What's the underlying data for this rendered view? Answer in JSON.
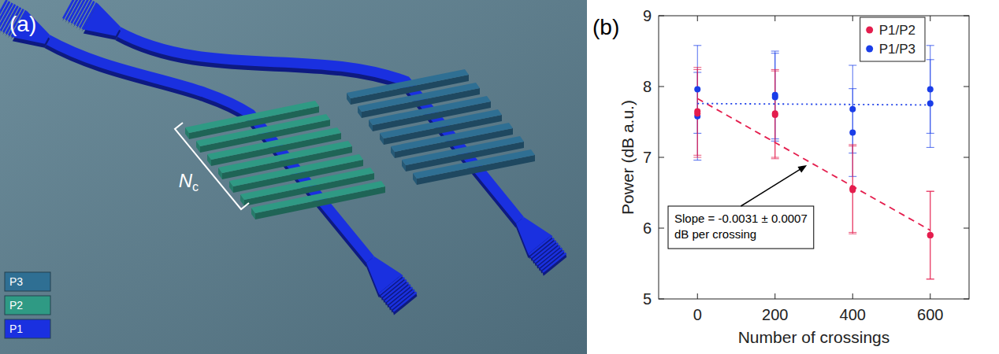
{
  "diagram": {
    "panel_label": "(a)",
    "bracket_label": "N",
    "bracket_label_subscript": "c",
    "legend": [
      {
        "label": "P3",
        "color": "#2f6f93"
      },
      {
        "label": "P2",
        "color": "#2f9a84"
      },
      {
        "label": "P1",
        "color": "#1a30e0"
      }
    ]
  },
  "chart_data": {
    "type": "scatter",
    "panel_label": "(b)",
    "x_label": "Number of crossings",
    "y_label": "Power (dB a.u.)",
    "xlim": [
      -100,
      700
    ],
    "xticks": [
      0,
      200,
      400,
      600
    ],
    "ylim": [
      5,
      9
    ],
    "yticks": [
      5,
      6,
      7,
      8,
      9
    ],
    "legend": "top-right",
    "series": [
      {
        "name": "P1/P3",
        "color": "#1a3de8",
        "marker": "circle",
        "x": [
          0,
          0,
          200,
          200,
          400,
          400,
          600,
          600
        ],
        "values": [
          7.96,
          7.58,
          7.88,
          7.85,
          7.68,
          7.35,
          7.96,
          7.76
        ],
        "errors": [
          0.62,
          0.62,
          0.62,
          0.62,
          0.62,
          0.62,
          0.62,
          0.62
        ]
      },
      {
        "name": "P1/P2",
        "color": "#e41d4d",
        "marker": "circle",
        "x": [
          0,
          0,
          200,
          200,
          400,
          400,
          600,
          600
        ],
        "values": [
          7.62,
          7.65,
          7.6,
          7.62,
          6.56,
          6.54,
          5.9,
          5.9
        ],
        "errors": [
          0.62,
          0.62,
          0.62,
          0.62,
          0.62,
          0.62,
          0.62,
          0.62
        ]
      },
      {
        "type": "line",
        "color": "#e41d4d",
        "line_style": "dashed",
        "x": [
          0,
          600
        ],
        "values": [
          7.83,
          5.97
        ]
      },
      {
        "type": "line",
        "color": "#1a3de8",
        "line_style": "dotted",
        "x": [
          0,
          600
        ],
        "values": [
          7.76,
          7.74
        ]
      }
    ],
    "annotations": [
      {
        "lines": [
          "Slope = -0.0031 ± 0.0007",
          "dB per crossing"
        ]
      }
    ]
  }
}
